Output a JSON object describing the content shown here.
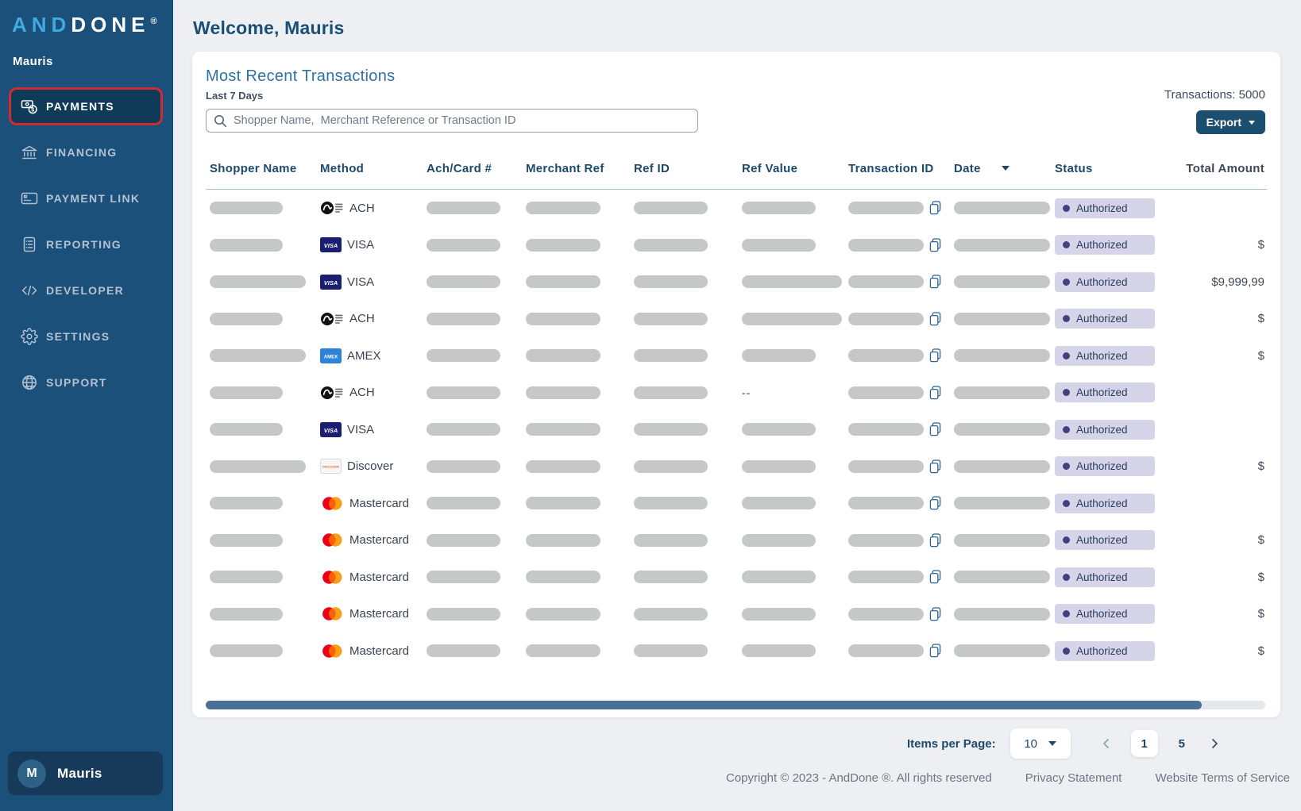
{
  "brand": {
    "logo_and": "AND",
    "logo_done": "DONE",
    "registered": "®"
  },
  "sidebar": {
    "username": "Mauris",
    "items": [
      {
        "label": "PAYMENTS",
        "icon": "payments",
        "active": true
      },
      {
        "label": "FINANCING",
        "icon": "financing",
        "active": false
      },
      {
        "label": "PAYMENT LINK",
        "icon": "payment-link",
        "active": false
      },
      {
        "label": "REPORTING",
        "icon": "reporting",
        "active": false
      },
      {
        "label": "DEVELOPER",
        "icon": "developer",
        "active": false
      },
      {
        "label": "SETTINGS",
        "icon": "settings",
        "active": false
      },
      {
        "label": "SUPPORT",
        "icon": "support",
        "active": false
      }
    ],
    "user_chip": {
      "initial": "M",
      "name": "Mauris"
    }
  },
  "header": {
    "welcome": "Welcome, Mauris"
  },
  "panel": {
    "title": "Most Recent Transactions",
    "subtitle": "Last 7 Days",
    "search_placeholder": "Shopper Name,  Merchant Reference or Transaction ID",
    "transactions_count": "Transactions: 5000",
    "export_label": "Export"
  },
  "table": {
    "columns": [
      "Shopper Name",
      "Method",
      "Ach/Card #",
      "Merchant Ref",
      "Ref ID",
      "Ref Value",
      "Transaction ID",
      "Date",
      "Status",
      "Total Amount"
    ],
    "sorted_column": "Date",
    "rows": [
      {
        "method": "ACH",
        "icon": "ach",
        "status": "Authorized",
        "total": ""
      },
      {
        "method": "VISA",
        "icon": "visa",
        "status": "Authorized",
        "total": "$"
      },
      {
        "method": "VISA",
        "icon": "visa",
        "status": "Authorized",
        "total": "$9,999,99",
        "wide_shopper": true,
        "wide_refvalue": true
      },
      {
        "method": "ACH",
        "icon": "ach",
        "status": "Authorized",
        "total": "$",
        "wide_refvalue": true
      },
      {
        "method": "AMEX",
        "icon": "amex",
        "status": "Authorized",
        "total": "$",
        "wide_shopper": true
      },
      {
        "method": "ACH",
        "icon": "ach",
        "status": "Authorized",
        "total": "",
        "ref_value_text": "--"
      },
      {
        "method": "VISA",
        "icon": "visa",
        "status": "Authorized",
        "total": ""
      },
      {
        "method": "Discover",
        "icon": "discover",
        "status": "Authorized",
        "total": "$",
        "wide_shopper": true
      },
      {
        "method": "Mastercard",
        "icon": "mastercard",
        "status": "Authorized",
        "total": ""
      },
      {
        "method": "Mastercard",
        "icon": "mastercard",
        "status": "Authorized",
        "total": "$"
      },
      {
        "method": "Mastercard",
        "icon": "mastercard",
        "status": "Authorized",
        "total": "$"
      },
      {
        "method": "Mastercard",
        "icon": "mastercard",
        "status": "Authorized",
        "total": "$"
      },
      {
        "method": "Mastercard",
        "icon": "mastercard",
        "status": "Authorized",
        "total": "$"
      }
    ]
  },
  "pagination": {
    "items_per_page_label": "Items per Page:",
    "items_per_page_value": "10",
    "current_page": "1",
    "last_page": "5"
  },
  "footer": {
    "copyright": "Copyright © 2023 - AndDone ®. All rights reserved",
    "privacy": "Privacy Statement",
    "terms": "Website Terms of Service"
  }
}
